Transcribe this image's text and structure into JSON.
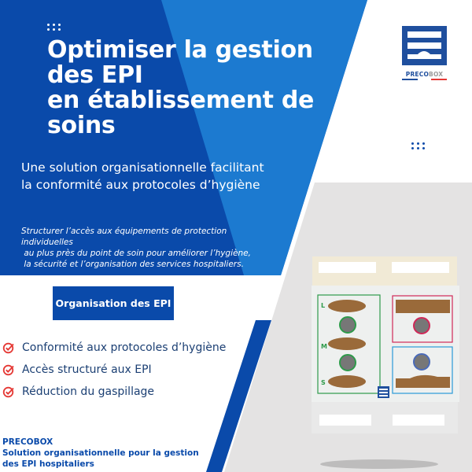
{
  "header": {
    "title_lines": [
      "Optimiser la gestion",
      "des EPI",
      "en établissement de",
      "soins"
    ],
    "subtitle_lines": [
      "Une solution organisationnelle facilitant",
      "la conformité aux protocoles d’hygiène"
    ],
    "description_lines": [
      "Structurer l’accès aux équipements de protection",
      "individuelles",
      " au plus près du point de soin pour améliorer l’hygiène,",
      " la sécurité et l’organisation des services hospitaliers."
    ]
  },
  "cta": {
    "label": "Organisation des EPI"
  },
  "benefits": [
    {
      "label": "Conformité aux protocoles d’hygiène",
      "icon": "check-circle-icon"
    },
    {
      "label": "Accès structuré aux EPI",
      "icon": "check-circle-icon"
    },
    {
      "label": "Réduction du gaspillage",
      "icon": "check-circle-icon"
    }
  ],
  "footer": {
    "brand": "PRECOBOX",
    "tagline_lines": [
      "Solution organisationnelle pour la gestion",
      "des EPI hospitaliers"
    ]
  },
  "logo": {
    "text_a": "PRECO",
    "text_b": "BOX"
  },
  "device": {
    "sizes": [
      "L",
      "M",
      "S"
    ]
  },
  "colors": {
    "dark_blue": "#0a4aaa",
    "light_blue": "#1c7ad0",
    "check_red": "#e53935",
    "text_navy": "#1b3f73",
    "photo_gray": "#e4e3e3"
  }
}
